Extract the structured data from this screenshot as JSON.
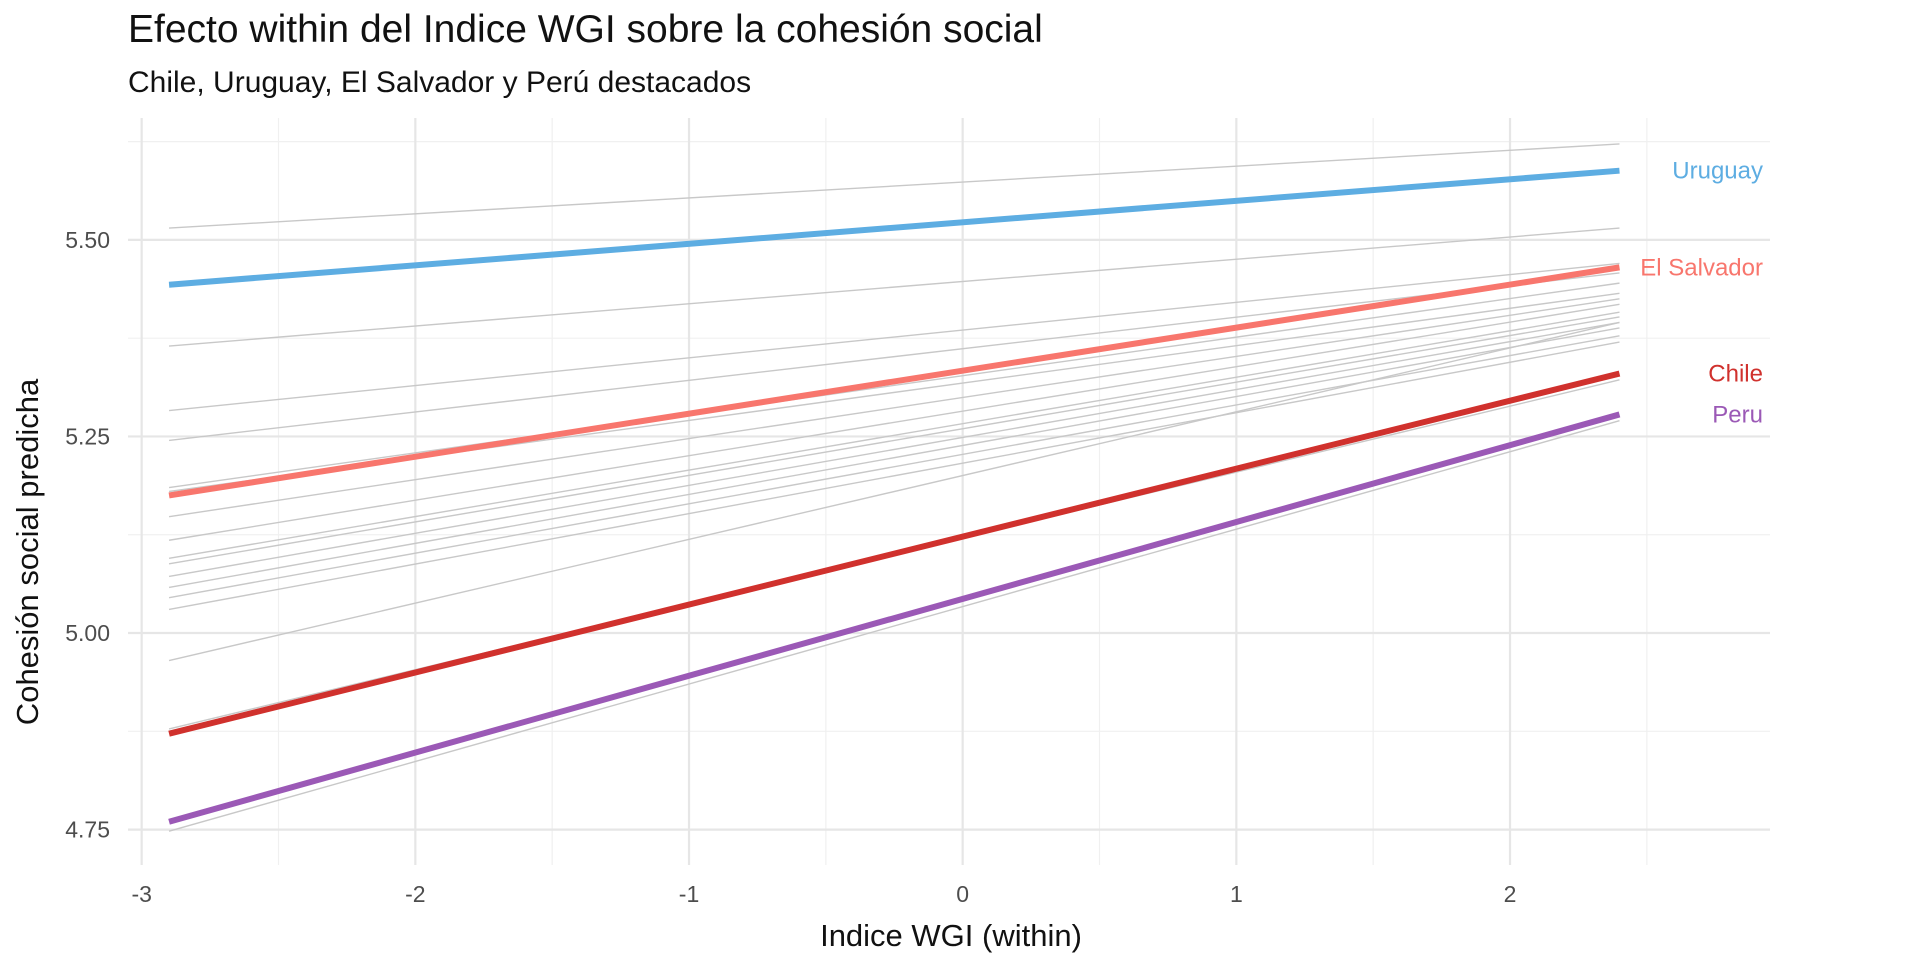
{
  "chart_data": {
    "type": "line",
    "title": "Efecto within del Indice WGI sobre la cohesión social",
    "subtitle": "Chile, Uruguay, El Salvador y Perú destacados",
    "xlabel": "Indice WGI (within)",
    "ylabel": "Cohesión social predicha",
    "xlim": [
      -3.05,
      2.95
    ],
    "ylim": [
      4.705,
      5.655
    ],
    "x_ticks": [
      -3,
      -2,
      -1,
      0,
      1,
      2
    ],
    "x_tick_labels": [
      "-3",
      "-2",
      "-1",
      "0",
      "1",
      "2"
    ],
    "y_ticks": [
      4.75,
      5.0,
      5.25,
      5.5
    ],
    "y_tick_labels": [
      "4.75",
      "5.00",
      "5.25",
      "5.50"
    ],
    "grid": true,
    "legend": "none",
    "x_range": [
      -2.9,
      2.4
    ],
    "highlighted_series": [
      {
        "name": "Uruguay",
        "color": "#5dade2",
        "values": [
          5.443,
          5.588
        ]
      },
      {
        "name": "El Salvador",
        "color": "#f8766d",
        "values": [
          5.175,
          5.465
        ]
      },
      {
        "name": "Chile",
        "color": "#d0312d",
        "values": [
          4.872,
          5.33
        ]
      },
      {
        "name": "Peru",
        "color": "#9b59b6",
        "values": [
          4.76,
          5.278
        ]
      }
    ],
    "background_series_color": "#c8c8c8",
    "background_series": [
      [
        5.515,
        5.622
      ],
      [
        5.365,
        5.515
      ],
      [
        5.283,
        5.47
      ],
      [
        5.245,
        5.458
      ],
      [
        5.185,
        5.445
      ],
      [
        5.18,
        5.432
      ],
      [
        5.148,
        5.425
      ],
      [
        5.118,
        5.418
      ],
      [
        5.095,
        5.408
      ],
      [
        5.088,
        5.402
      ],
      [
        5.072,
        5.395
      ],
      [
        5.058,
        5.388
      ],
      [
        5.045,
        5.378
      ],
      [
        5.03,
        5.37
      ],
      [
        4.965,
        5.395
      ],
      [
        4.878,
        5.322
      ],
      [
        4.748,
        5.27
      ]
    ]
  }
}
